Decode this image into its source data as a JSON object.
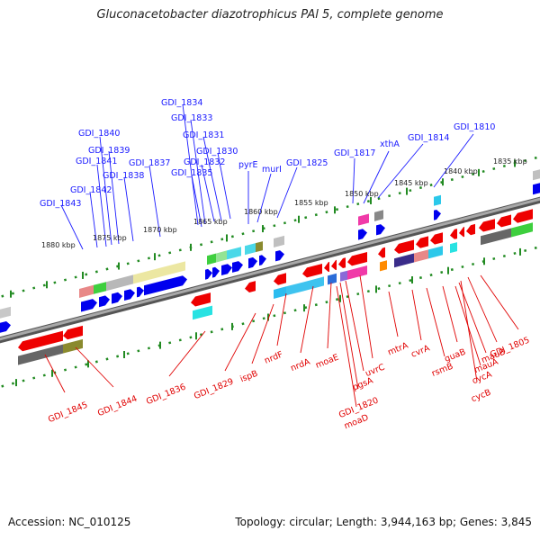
{
  "title": "Gluconacetobacter diazotrophicus PAl 5, complete genome",
  "footer": {
    "accession": "Accession: NC_010125",
    "summary": "Topology: circular; Length: 3,944,163 bp; Genes: 3,845"
  },
  "colors": {
    "forward_label": "#1a1aff",
    "reverse_label": "#e00000",
    "forward_arrow": "#0000ee",
    "reverse_arrow": "#ee0000",
    "tick": "#228b22",
    "backbone": "#808080"
  },
  "scale": {
    "unit": "kbp",
    "ticks": [
      1880,
      1875,
      1870,
      1865,
      1860,
      1855,
      1850,
      1845,
      1840,
      1835
    ]
  },
  "forward_genes": [
    "GDI_1843",
    "GDI_1842",
    "GDI_1841",
    "GDI_1840",
    "GDI_1839",
    "GDI_1838",
    "GDI_1837",
    "GDI_1835",
    "GDI_1834",
    "GDI_1833",
    "GDI_1832",
    "GDI_1831",
    "GDI_1830",
    "pyrE",
    "murI",
    "GDI_1825",
    "GDI_1817",
    "xthA",
    "GDI_1814",
    "GDI_1810"
  ],
  "reverse_genes": [
    "GDI_1845",
    "GDI_1844",
    "GDI_1836",
    "GDI_1829",
    "ispB",
    "nrdF",
    "nrdA",
    "moaE",
    "GDI_1820",
    "moaD",
    "pgsA",
    "uvrC",
    "mtrA",
    "cvrA",
    "rsmB",
    "guaB",
    "mauA",
    "cycA",
    "cycB",
    "mauB",
    "GDI_1805"
  ]
}
